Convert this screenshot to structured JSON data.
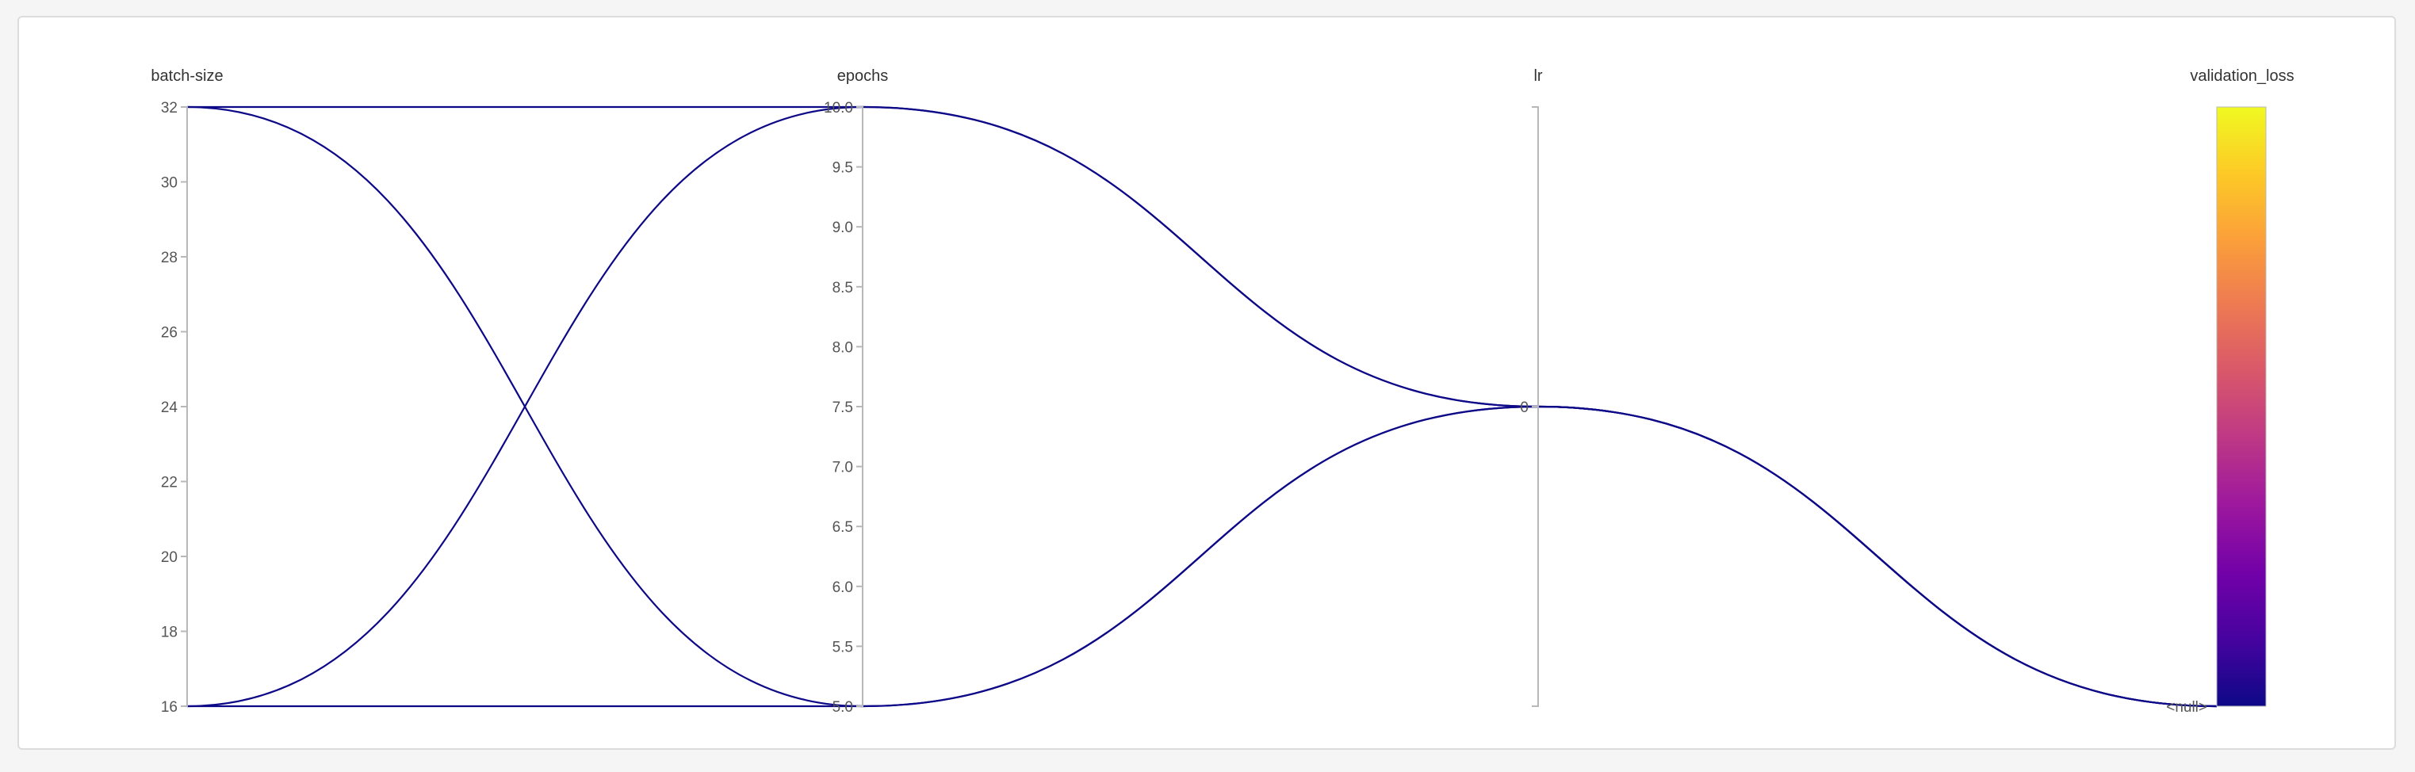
{
  "chart_data": {
    "type": "parallel-coordinates",
    "line_color": "#0d0887",
    "axes": [
      {
        "key": "batch_size",
        "label": "batch-size",
        "range": [
          16,
          32
        ],
        "ticks": [
          16,
          18,
          20,
          22,
          24,
          26,
          28,
          30,
          32
        ],
        "tick_labels": [
          "16",
          "18",
          "20",
          "22",
          "24",
          "26",
          "28",
          "30",
          "32"
        ]
      },
      {
        "key": "epochs",
        "label": "epochs",
        "range": [
          5,
          10
        ],
        "ticks": [
          5,
          5.5,
          6,
          6.5,
          7,
          7.5,
          8,
          8.5,
          9,
          9.5,
          10
        ],
        "tick_labels": [
          "5.0",
          "5.5",
          "6.0",
          "6.5",
          "7.0",
          "7.5",
          "8.0",
          "8.5",
          "9.0",
          "9.5",
          "10.0"
        ]
      },
      {
        "key": "lr",
        "label": "lr",
        "range": [
          -1,
          1
        ],
        "ticks": [
          0
        ],
        "tick_labels": [
          "0"
        ]
      },
      {
        "key": "validation_loss",
        "label": "validation_loss",
        "range": [
          0,
          1
        ],
        "ticks": [
          0
        ],
        "tick_labels": [
          "<null>"
        ],
        "colorscale": [
          "#0d0887",
          "#46039f",
          "#7201a8",
          "#9c179e",
          "#bd3786",
          "#d8576b",
          "#ed7953",
          "#fb9f3a",
          "#fdca26",
          "#f0f921"
        ]
      }
    ],
    "runs": [
      {
        "batch_size": 32,
        "epochs": 10,
        "lr": 0,
        "validation_loss": null
      },
      {
        "batch_size": 32,
        "epochs": 5,
        "lr": 0,
        "validation_loss": null
      },
      {
        "batch_size": 16,
        "epochs": 10,
        "lr": 0,
        "validation_loss": null
      },
      {
        "batch_size": 16,
        "epochs": 5,
        "lr": 0,
        "validation_loss": null
      }
    ]
  }
}
